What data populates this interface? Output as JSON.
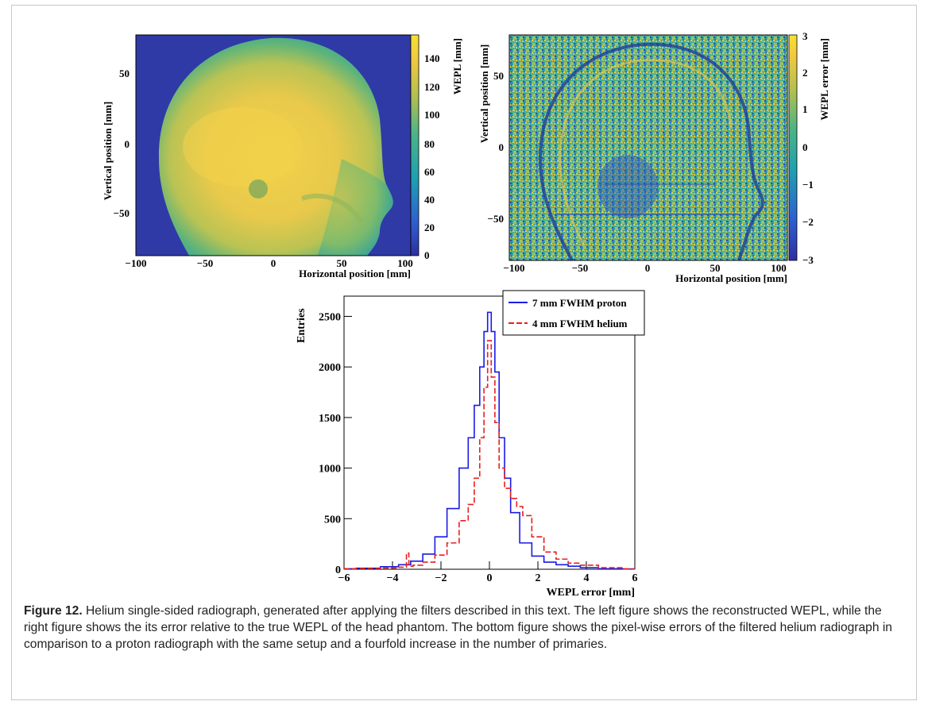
{
  "figure": {
    "label": "Figure 12.",
    "caption": "Helium single-sided radiograph, generated after applying the filters described in this text. The left figure shows the reconstructed WEPL, while the right figure shows the its error relative to the true WEPL of the head phantom. The bottom figure shows the pixel-wise errors of the filtered helium radiograph in comparison to a proton radiograph with the same setup and a fourfold increase in the number of primaries."
  },
  "panels": {
    "left": {
      "xlabel": "Horizontal position [mm]",
      "ylabel": "Vertical position [mm]",
      "zlabel": "WEPL [mm]",
      "xticks": [
        "−100",
        "−50",
        "0",
        "50",
        "100"
      ],
      "yticks": [
        "50",
        "0",
        "−50"
      ],
      "zticks": [
        "140",
        "120",
        "100",
        "80",
        "60",
        "40",
        "20",
        "0"
      ]
    },
    "right": {
      "xlabel": "Horizontal position [mm]",
      "ylabel": "Vertical position [mm]",
      "zlabel": "WEPL error [mm]",
      "xticks": [
        "−100",
        "−50",
        "0",
        "50",
        "100"
      ],
      "yticks": [
        "50",
        "0",
        "−50"
      ],
      "zticks": [
        "3",
        "2",
        "1",
        "0",
        "−1",
        "−2",
        "−3"
      ]
    }
  },
  "chart_data": {
    "type": "line",
    "xlabel": "WEPL error [mm]",
    "ylabel": "Entries",
    "xlim": [
      -6,
      6
    ],
    "ylim": [
      0,
      2700
    ],
    "xticks": [
      "−6",
      "−4",
      "−2",
      "0",
      "2",
      "4",
      "6"
    ],
    "yticks": [
      "0",
      "500",
      "1000",
      "1500",
      "2000",
      "2500"
    ],
    "legend_position": "top-right",
    "series": [
      {
        "name": "7 mm FWHM proton",
        "color": "#1a1ae6",
        "x": [
          -6,
          -5,
          -4,
          -3.5,
          -3,
          -2.5,
          -2,
          -1.5,
          -1,
          -0.75,
          -0.5,
          -0.3,
          -0.15,
          0,
          0.15,
          0.3,
          0.5,
          0.75,
          1,
          1.5,
          2,
          2.5,
          3,
          3.5,
          4,
          5,
          6
        ],
        "values": [
          5,
          10,
          25,
          45,
          80,
          150,
          320,
          600,
          1000,
          1300,
          1620,
          2000,
          2350,
          2540,
          2350,
          1950,
          1300,
          900,
          560,
          260,
          130,
          70,
          45,
          30,
          15,
          5,
          2
        ]
      },
      {
        "name": "4 mm FWHM helium",
        "color": "#e62020",
        "x": [
          -6,
          -5,
          -4,
          -3.5,
          -3.35,
          -3.3,
          -3,
          -2.5,
          -2,
          -1.5,
          -1,
          -0.75,
          -0.5,
          -0.3,
          -0.15,
          0,
          0.15,
          0.3,
          0.5,
          0.75,
          1,
          1.25,
          1.5,
          2,
          2.5,
          3,
          3.5,
          4,
          5,
          6
        ],
        "values": [
          5,
          8,
          12,
          20,
          160,
          30,
          40,
          70,
          140,
          260,
          480,
          640,
          900,
          1300,
          1800,
          2260,
          1900,
          1450,
          1000,
          800,
          700,
          620,
          530,
          320,
          170,
          100,
          60,
          40,
          15,
          5
        ]
      }
    ]
  }
}
